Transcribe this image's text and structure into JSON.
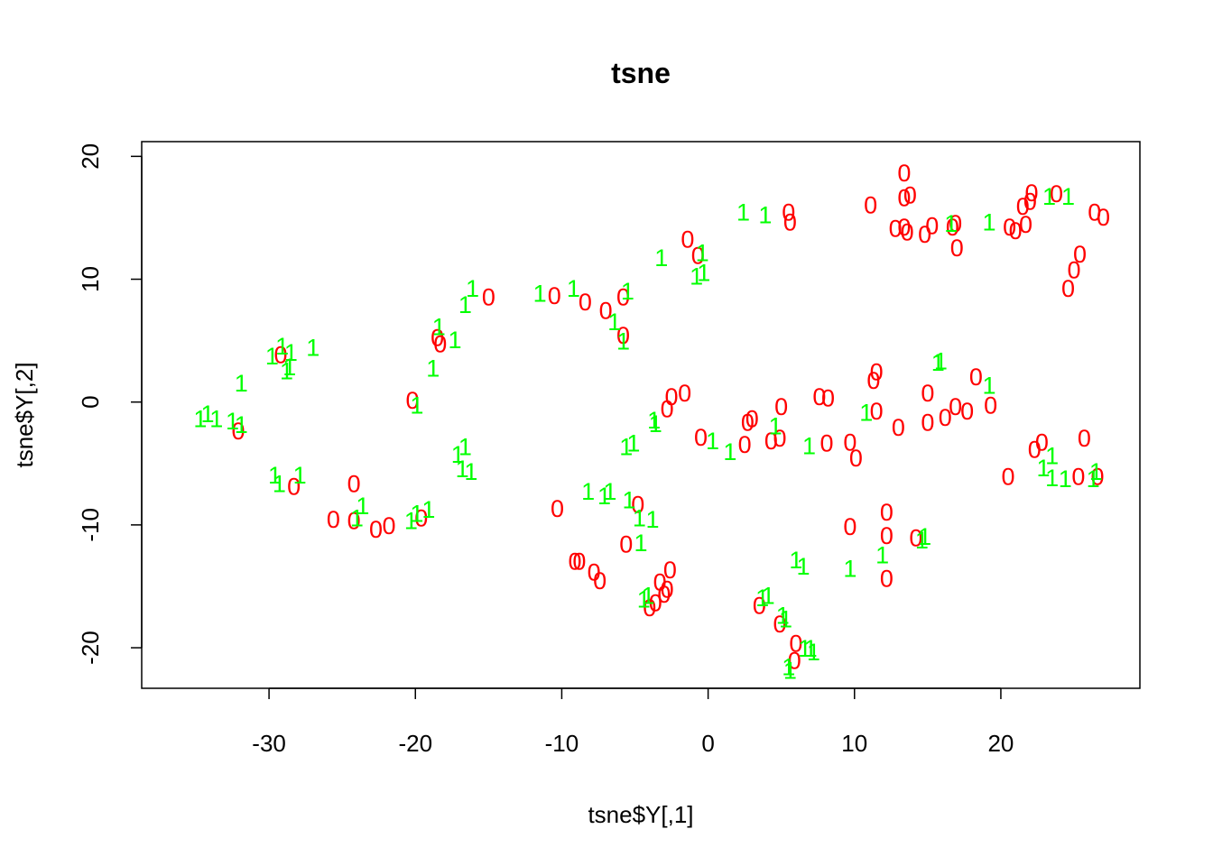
{
  "chart_data": {
    "type": "scatter",
    "title": "tsne",
    "xlabel": "tsne$Y[,1]",
    "ylabel": "tsne$Y[,2]",
    "xlim": [
      -38.7,
      29.5
    ],
    "ylim": [
      -23.3,
      21.2
    ],
    "xticks": [
      -30,
      -20,
      -10,
      0,
      10,
      20
    ],
    "yticks": [
      -20,
      -10,
      0,
      10,
      20
    ],
    "grid": false,
    "legend": "none",
    "series": [
      {
        "marker": "0",
        "color": "#FF0000",
        "points": [
          [
            13.4,
            18.7
          ],
          [
            13.4,
            16.7
          ],
          [
            13.8,
            16.9
          ],
          [
            11.1,
            16.1
          ],
          [
            5.5,
            15.5
          ],
          [
            5.6,
            14.7
          ],
          [
            12.8,
            14.2
          ],
          [
            13.4,
            14.3
          ],
          [
            13.6,
            13.9
          ],
          [
            14.8,
            13.7
          ],
          [
            15.3,
            14.4
          ],
          [
            16.7,
            14.3
          ],
          [
            16.9,
            14.6
          ],
          [
            17.0,
            12.6
          ],
          [
            20.6,
            14.3
          ],
          [
            21.0,
            14.0
          ],
          [
            21.5,
            16.0
          ],
          [
            21.7,
            14.5
          ],
          [
            22.0,
            16.4
          ],
          [
            22.1,
            17.1
          ],
          [
            23.8,
            17.0
          ],
          [
            26.4,
            15.5
          ],
          [
            27.0,
            15.1
          ],
          [
            25.4,
            12.1
          ],
          [
            25.0,
            10.8
          ],
          [
            24.6,
            9.3
          ],
          [
            -1.4,
            13.3
          ],
          [
            -0.7,
            12.0
          ],
          [
            -15.0,
            8.6
          ],
          [
            -10.5,
            8.7
          ],
          [
            -8.4,
            8.2
          ],
          [
            -7.0,
            7.5
          ],
          [
            -5.8,
            8.6
          ],
          [
            -5.8,
            5.5
          ],
          [
            -18.5,
            5.3
          ],
          [
            -18.3,
            4.8
          ],
          [
            -29.2,
            3.9
          ],
          [
            -20.2,
            0.2
          ],
          [
            -32.1,
            -2.3
          ],
          [
            -2.5,
            0.5
          ],
          [
            -1.6,
            0.8
          ],
          [
            -2.8,
            -0.5
          ],
          [
            11.5,
            2.5
          ],
          [
            11.3,
            1.8
          ],
          [
            18.3,
            2.1
          ],
          [
            15.0,
            0.8
          ],
          [
            7.6,
            0.5
          ],
          [
            8.2,
            0.4
          ],
          [
            5.0,
            -0.3
          ],
          [
            11.5,
            -0.7
          ],
          [
            16.9,
            -0.3
          ],
          [
            17.7,
            -0.7
          ],
          [
            19.3,
            -0.2
          ],
          [
            16.2,
            -1.2
          ],
          [
            15.0,
            -1.6
          ],
          [
            13.0,
            -2.0
          ],
          [
            2.7,
            -1.6
          ],
          [
            3.0,
            -1.3
          ],
          [
            -0.5,
            -2.8
          ],
          [
            2.5,
            -3.4
          ],
          [
            4.3,
            -3.1
          ],
          [
            4.9,
            -2.9
          ],
          [
            8.1,
            -3.3
          ],
          [
            9.7,
            -3.2
          ],
          [
            10.1,
            -4.5
          ],
          [
            22.8,
            -3.2
          ],
          [
            22.3,
            -3.8
          ],
          [
            25.7,
            -2.9
          ],
          [
            20.5,
            -6.0
          ],
          [
            25.3,
            -6.0
          ],
          [
            26.6,
            -6.0
          ],
          [
            -24.2,
            -6.6
          ],
          [
            -28.3,
            -6.8
          ],
          [
            -25.6,
            -9.5
          ],
          [
            -24.2,
            -9.6
          ],
          [
            -22.7,
            -10.3
          ],
          [
            -21.8,
            -10.0
          ],
          [
            -19.6,
            -9.4
          ],
          [
            -10.3,
            -8.6
          ],
          [
            -4.8,
            -8.3
          ],
          [
            -5.6,
            -11.5
          ],
          [
            -9.1,
            -12.9
          ],
          [
            -8.8,
            -12.9
          ],
          [
            -7.8,
            -13.8
          ],
          [
            -7.4,
            -14.5
          ],
          [
            -3.3,
            -14.6
          ],
          [
            -2.6,
            -13.6
          ],
          [
            -2.8,
            -15.2
          ],
          [
            -3.0,
            -15.6
          ],
          [
            -3.6,
            -16.3
          ],
          [
            -4.0,
            -16.7
          ],
          [
            9.7,
            -10.1
          ],
          [
            12.2,
            -8.9
          ],
          [
            12.2,
            -10.8
          ],
          [
            14.2,
            -11.0
          ],
          [
            12.2,
            -14.3
          ],
          [
            3.5,
            -16.5
          ],
          [
            4.9,
            -18.0
          ],
          [
            6.0,
            -19.6
          ],
          [
            5.9,
            -21.0
          ]
        ]
      },
      {
        "marker": "1",
        "color": "#00FF00",
        "points": [
          [
            2.4,
            15.5
          ],
          [
            3.9,
            15.3
          ],
          [
            -3.2,
            11.8
          ],
          [
            -0.8,
            10.3
          ],
          [
            -0.3,
            10.6
          ],
          [
            -0.4,
            12.2
          ],
          [
            16.6,
            14.6
          ],
          [
            19.2,
            14.7
          ],
          [
            23.3,
            16.8
          ],
          [
            24.6,
            16.8
          ],
          [
            -16.6,
            8.0
          ],
          [
            -16.1,
            9.3
          ],
          [
            -11.5,
            8.9
          ],
          [
            -9.2,
            9.3
          ],
          [
            -5.5,
            9.1
          ],
          [
            -6.4,
            6.6
          ],
          [
            -5.8,
            5.0
          ],
          [
            -18.4,
            6.2
          ],
          [
            -17.3,
            5.1
          ],
          [
            -18.8,
            2.8
          ],
          [
            -29.8,
            3.8
          ],
          [
            -29.1,
            4.6
          ],
          [
            -28.5,
            4.1
          ],
          [
            -28.8,
            2.6
          ],
          [
            -28.6,
            2.9
          ],
          [
            -27.0,
            4.5
          ],
          [
            -31.9,
            1.6
          ],
          [
            -34.7,
            -1.3
          ],
          [
            -34.2,
            -0.9
          ],
          [
            -33.6,
            -1.3
          ],
          [
            -32.5,
            -1.5
          ],
          [
            -31.9,
            -1.8
          ],
          [
            -19.9,
            -0.2
          ],
          [
            -5.6,
            -3.6
          ],
          [
            -5.1,
            -3.3
          ],
          [
            -3.6,
            -1.7
          ],
          [
            -3.7,
            -1.4
          ],
          [
            0.3,
            -3.1
          ],
          [
            1.5,
            -4.0
          ],
          [
            4.6,
            -1.9
          ],
          [
            6.9,
            -3.5
          ],
          [
            10.8,
            -0.8
          ],
          [
            15.7,
            3.3
          ],
          [
            15.9,
            3.4
          ],
          [
            19.2,
            1.4
          ],
          [
            -17.1,
            -4.2
          ],
          [
            -16.6,
            -3.6
          ],
          [
            -16.8,
            -5.4
          ],
          [
            -16.2,
            -5.6
          ],
          [
            -29.6,
            -5.9
          ],
          [
            -29.3,
            -6.6
          ],
          [
            -27.9,
            -5.9
          ],
          [
            -23.6,
            -8.4
          ],
          [
            -24.0,
            -9.4
          ],
          [
            -20.3,
            -9.6
          ],
          [
            -19.9,
            -9.0
          ],
          [
            -19.1,
            -8.7
          ],
          [
            -8.2,
            -7.2
          ],
          [
            -6.7,
            -7.2
          ],
          [
            -5.4,
            -7.9
          ],
          [
            -7.1,
            -7.6
          ],
          [
            -4.7,
            -9.4
          ],
          [
            -3.8,
            -9.5
          ],
          [
            -4.6,
            -11.4
          ],
          [
            22.9,
            -5.3
          ],
          [
            23.5,
            -4.3
          ],
          [
            23.5,
            -6.1
          ],
          [
            24.4,
            -6.2
          ],
          [
            26.5,
            -5.6
          ],
          [
            26.3,
            -6.2
          ],
          [
            14.8,
            -10.9
          ],
          [
            14.6,
            -11.2
          ],
          [
            11.9,
            -12.4
          ],
          [
            6.0,
            -12.8
          ],
          [
            6.5,
            -13.3
          ],
          [
            9.7,
            -13.5
          ],
          [
            4.1,
            -15.7
          ],
          [
            3.7,
            -15.9
          ],
          [
            -4.1,
            -15.7
          ],
          [
            -4.4,
            -16.0
          ],
          [
            5.1,
            -17.3
          ],
          [
            5.3,
            -17.6
          ],
          [
            6.6,
            -20.0
          ],
          [
            7.0,
            -20.0
          ],
          [
            7.2,
            -20.3
          ],
          [
            5.5,
            -21.5
          ],
          [
            5.6,
            -21.8
          ]
        ]
      }
    ]
  }
}
